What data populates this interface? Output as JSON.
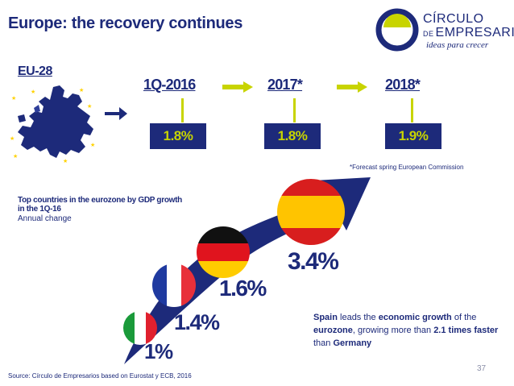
{
  "slide": {
    "title": "Europe: the recovery continues",
    "page_number": "37",
    "source": "Source: Círculo de Empresarios based on Eurostat y ECB, 2016"
  },
  "logo": {
    "line1": "CÍRCULO",
    "de": "DE",
    "line2": "EMPRESARIOS",
    "tagline": "ideas para crecer"
  },
  "eu": {
    "label": "EU-28"
  },
  "forecasts": [
    {
      "period": "1Q-2016",
      "value": "1.8%"
    },
    {
      "period": "2017*",
      "value": "1.8%"
    },
    {
      "period": "2018*",
      "value": "1.9%"
    }
  ],
  "footnote": "*Forecast spring European Commission",
  "top_countries": {
    "heading": "Top countries in the eurozone by GDP growth in the 1Q-16",
    "subheading": "Annual change",
    "items": [
      {
        "country": "Italy",
        "value": "1%"
      },
      {
        "country": "France",
        "value": "1.4%"
      },
      {
        "country": "Germany",
        "value": "1.6%"
      },
      {
        "country": "Spain",
        "value": "3.4%"
      }
    ]
  },
  "note": {
    "b1": "Spain",
    "t1": " leads the ",
    "b2": "economic growth",
    "t2": " of the ",
    "b3": "eurozone",
    "t3": ", growing more than ",
    "b4": "2.1 times faster",
    "t4": " than ",
    "b5": "Germany"
  },
  "colors": {
    "navy": "#1d2a7a",
    "lime": "#c8d400"
  }
}
